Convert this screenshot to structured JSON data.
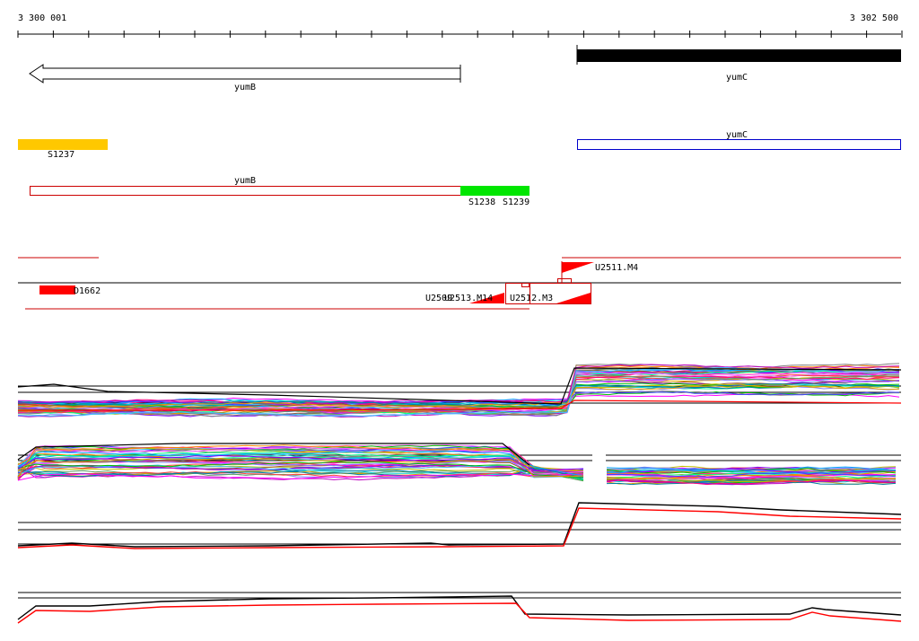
{
  "ruler": {
    "start_label": "3 300 001",
    "end_label": "3 302 500"
  },
  "genes": {
    "yumB_label": "yumB",
    "yumC_label": "yumC"
  },
  "segments": {
    "s1237": "S1237",
    "yumB_label": "yumB",
    "yumC_label": "yumC",
    "s1238": "S1238",
    "s1239": "S1239"
  },
  "features": {
    "d1662": "D1662",
    "u2511_m4": "U2511.M4",
    "u2512_m3": "U2512.M3",
    "u2513_m14": "U2513.M14",
    "u2509": "U2509"
  },
  "colors": {
    "segment_yellow": "#ffc800",
    "segment_green": "#00e600",
    "segment_outline_red": "#cc0000",
    "segment_outline_blue": "#0000cc",
    "feature_red": "#ff0000",
    "gene_black": "#000000"
  }
}
